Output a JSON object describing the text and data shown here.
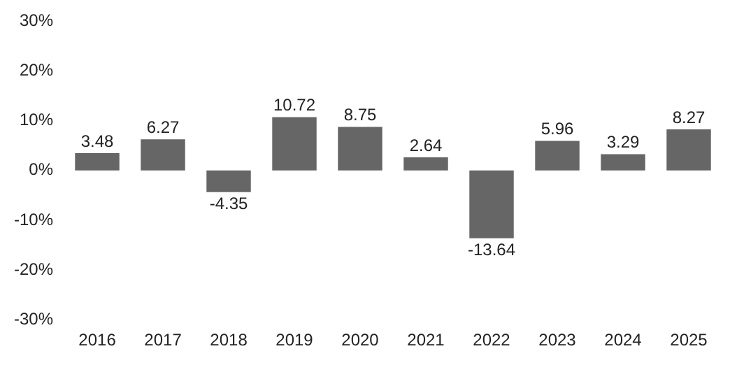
{
  "chart_data": {
    "type": "bar",
    "categories": [
      "2016",
      "2017",
      "2018",
      "2019",
      "2020",
      "2021",
      "2022",
      "2023",
      "2024",
      "2025"
    ],
    "values": [
      3.48,
      6.27,
      -4.35,
      10.72,
      8.75,
      2.64,
      -13.64,
      5.96,
      3.29,
      8.27
    ],
    "color": "#666666",
    "data_labels": true,
    "grid": false,
    "legend": false,
    "ylim": [
      -30,
      30
    ],
    "yticks": [
      {
        "value": -30,
        "label": "-30%"
      },
      {
        "value": -20,
        "label": "-20%"
      },
      {
        "value": -10,
        "label": "-10%"
      },
      {
        "value": 0,
        "label": "0%"
      },
      {
        "value": 10,
        "label": "10%"
      },
      {
        "value": 20,
        "label": "20%"
      },
      {
        "value": 30,
        "label": "30%"
      }
    ]
  }
}
